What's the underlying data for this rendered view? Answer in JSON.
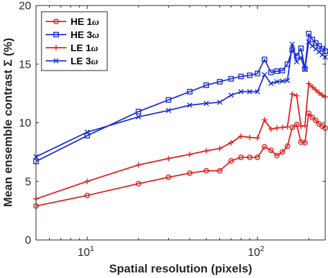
{
  "chart_data": {
    "type": "line",
    "xlabel": "Spatial resolution (pixels)",
    "ylabel": "Mean ensemble contrast Σ (%)",
    "xscale": "log",
    "xlim": [
      5,
      250
    ],
    "ylim": [
      0,
      20
    ],
    "x_ticks": [
      10,
      100
    ],
    "x_tick_labels": [
      {
        "base": "10",
        "exp": "1"
      },
      {
        "base": "10",
        "exp": "2"
      }
    ],
    "y_ticks": [
      0,
      5,
      10,
      15,
      20
    ],
    "grid": false,
    "legend_position": "top-left",
    "x": [
      5,
      10,
      20,
      30,
      40,
      50,
      60,
      70,
      80,
      90,
      100,
      110,
      120,
      130,
      140,
      150,
      160,
      170,
      180,
      190,
      200,
      210,
      220,
      230,
      240,
      250
    ],
    "series": [
      {
        "name": "HE 1",
        "name_suffix": "ω",
        "color": "#e11f1f",
        "marker": "circle",
        "values": [
          2.9,
          3.8,
          4.8,
          5.35,
          5.7,
          5.9,
          5.9,
          6.75,
          7.05,
          7.05,
          7.05,
          7.95,
          7.65,
          7.2,
          7.5,
          8.0,
          9.6,
          9.85,
          8.35,
          8.3,
          10.8,
          10.45,
          10.2,
          9.9,
          9.7,
          9.55
        ]
      },
      {
        "name": "HE 3",
        "name_suffix": "ω",
        "color": "#1a2fd6",
        "marker": "square",
        "values": [
          6.7,
          8.9,
          10.95,
          11.95,
          12.65,
          13.2,
          13.5,
          13.75,
          13.95,
          14.05,
          14.2,
          15.4,
          14.3,
          14.4,
          14.45,
          15.0,
          16.2,
          15.7,
          16.35,
          14.6,
          17.6,
          17.1,
          16.8,
          16.55,
          16.3,
          16.1
        ]
      },
      {
        "name": "LE 1",
        "name_suffix": "ω",
        "color": "#e11f1f",
        "marker": "plus",
        "values": [
          3.5,
          5.0,
          6.4,
          6.95,
          7.3,
          7.6,
          7.8,
          8.3,
          8.85,
          8.75,
          8.7,
          10.25,
          9.45,
          9.55,
          9.6,
          9.65,
          12.45,
          12.3,
          9.7,
          9.75,
          13.35,
          13.05,
          12.8,
          12.55,
          12.35,
          12.2
        ]
      },
      {
        "name": "LE 3",
        "name_suffix": "ω",
        "color": "#1a2fd6",
        "marker": "x",
        "values": [
          7.1,
          9.2,
          10.5,
          11.05,
          11.5,
          11.65,
          11.75,
          12.35,
          12.65,
          12.65,
          12.65,
          14.1,
          13.35,
          13.5,
          13.55,
          13.6,
          16.7,
          15.2,
          15.55,
          14.55,
          16.9,
          16.55,
          16.3,
          16.05,
          15.8,
          15.6
        ]
      }
    ]
  }
}
